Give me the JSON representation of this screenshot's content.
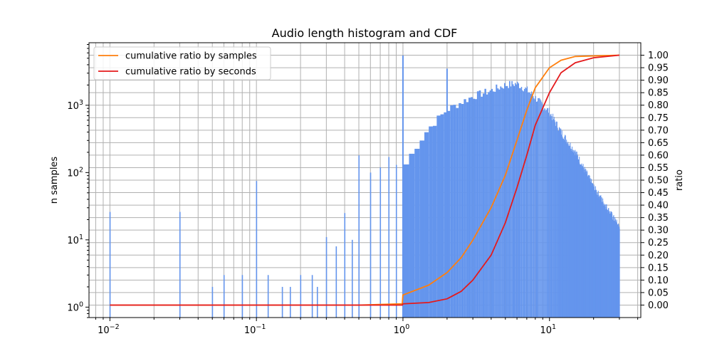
{
  "chart_data": {
    "type": "histogram+line",
    "title": "Audio length histogram and CDF",
    "xlabel": "",
    "ylabel_left": "n samples",
    "ylabel_right": "ratio",
    "x_scale": "log",
    "y_left_scale": "log",
    "xlim": [
      0.0072,
      42
    ],
    "ylim_left": [
      0.7,
      8500
    ],
    "ylim_right": [
      -0.05,
      1.05
    ],
    "grid": true,
    "legend_position": "upper-left",
    "x_ticks": [
      {
        "value": 0.01,
        "base": "10",
        "exp": "−2"
      },
      {
        "value": 0.1,
        "base": "10",
        "exp": "−1"
      },
      {
        "value": 1,
        "base": "10",
        "exp": "0"
      },
      {
        "value": 10,
        "base": "10",
        "exp": "1"
      }
    ],
    "y_left_ticks": [
      {
        "value": 1,
        "base": "10",
        "exp": "0"
      },
      {
        "value": 10,
        "base": "10",
        "exp": "1"
      },
      {
        "value": 100,
        "base": "10",
        "exp": "2"
      },
      {
        "value": 1000,
        "base": "10",
        "exp": "3"
      }
    ],
    "y_right_ticks": [
      "0.00",
      "0.05",
      "0.10",
      "0.15",
      "0.20",
      "0.25",
      "0.30",
      "0.35",
      "0.40",
      "0.45",
      "0.50",
      "0.55",
      "0.60",
      "0.65",
      "0.70",
      "0.75",
      "0.80",
      "0.85",
      "0.90",
      "0.95",
      "1.00"
    ],
    "histogram": {
      "color": "#6495ed",
      "bin_width": 0.1,
      "spikes": [
        {
          "x": 0.01,
          "count": 26
        },
        {
          "x": 0.03,
          "count": 26
        },
        {
          "x": 0.05,
          "count": 2
        },
        {
          "x": 0.06,
          "count": 3
        },
        {
          "x": 0.08,
          "count": 3
        },
        {
          "x": 0.1,
          "count": 75
        },
        {
          "x": 0.12,
          "count": 3
        },
        {
          "x": 0.15,
          "count": 2
        },
        {
          "x": 0.17,
          "count": 2
        },
        {
          "x": 0.2,
          "count": 3
        },
        {
          "x": 0.24,
          "count": 3
        },
        {
          "x": 0.26,
          "count": 2
        },
        {
          "x": 0.3,
          "count": 11
        },
        {
          "x": 0.35,
          "count": 8
        },
        {
          "x": 0.4,
          "count": 25
        },
        {
          "x": 0.45,
          "count": 10
        },
        {
          "x": 0.5,
          "count": 180
        },
        {
          "x": 0.6,
          "count": 100
        },
        {
          "x": 0.7,
          "count": 120
        },
        {
          "x": 0.8,
          "count": 170
        },
        {
          "x": 0.9,
          "count": 130
        },
        {
          "x": 1.0,
          "count": 5500
        },
        {
          "x": 2.0,
          "count": 3500
        }
      ],
      "envelope": [
        {
          "x": 1.0,
          "count": 110
        },
        {
          "x": 1.2,
          "count": 220
        },
        {
          "x": 1.5,
          "count": 450
        },
        {
          "x": 2.0,
          "count": 850
        },
        {
          "x": 2.5,
          "count": 1100
        },
        {
          "x": 3.0,
          "count": 1350
        },
        {
          "x": 4.0,
          "count": 1650
        },
        {
          "x": 5.0,
          "count": 2000
        },
        {
          "x": 6.0,
          "count": 2100
        },
        {
          "x": 7.0,
          "count": 1700
        },
        {
          "x": 8.0,
          "count": 1300
        },
        {
          "x": 10.0,
          "count": 800
        },
        {
          "x": 12.0,
          "count": 400
        },
        {
          "x": 15.0,
          "count": 200
        },
        {
          "x": 20.0,
          "count": 60
        },
        {
          "x": 25.0,
          "count": 28
        },
        {
          "x": 30.0,
          "count": 15
        }
      ]
    },
    "series": [
      {
        "name": "cumulative ratio by samples",
        "color": "#ff7f0e",
        "points": [
          [
            0.01,
            0.0
          ],
          [
            0.5,
            0.0
          ],
          [
            0.99,
            0.005
          ],
          [
            1.0,
            0.04
          ],
          [
            1.5,
            0.08
          ],
          [
            2.0,
            0.13
          ],
          [
            2.5,
            0.19
          ],
          [
            3.0,
            0.26
          ],
          [
            4.0,
            0.39
          ],
          [
            5.0,
            0.52
          ],
          [
            6.0,
            0.66
          ],
          [
            7.0,
            0.78
          ],
          [
            8.0,
            0.87
          ],
          [
            10.0,
            0.95
          ],
          [
            12.0,
            0.98
          ],
          [
            15.0,
            0.995
          ],
          [
            30.0,
            1.0
          ]
        ]
      },
      {
        "name": "cumulative ratio by seconds",
        "color": "#e41a1c",
        "points": [
          [
            0.01,
            0.0
          ],
          [
            0.99,
            0.0
          ],
          [
            1.0,
            0.005
          ],
          [
            1.5,
            0.01
          ],
          [
            2.0,
            0.025
          ],
          [
            2.5,
            0.055
          ],
          [
            3.0,
            0.1
          ],
          [
            4.0,
            0.2
          ],
          [
            5.0,
            0.33
          ],
          [
            6.0,
            0.47
          ],
          [
            7.0,
            0.6
          ],
          [
            8.0,
            0.72
          ],
          [
            10.0,
            0.85
          ],
          [
            12.0,
            0.93
          ],
          [
            15.0,
            0.97
          ],
          [
            20.0,
            0.99
          ],
          [
            30.0,
            1.0
          ]
        ]
      }
    ]
  }
}
